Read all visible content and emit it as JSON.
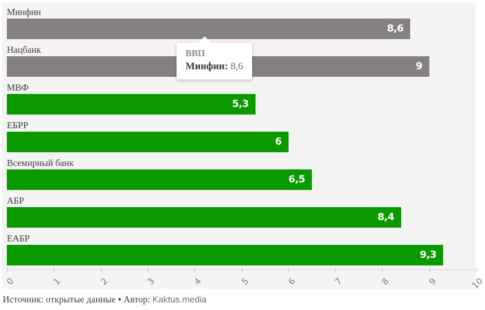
{
  "chart_data": {
    "type": "bar",
    "orientation": "horizontal",
    "title": "",
    "series_name": "ВВП",
    "categories": [
      "Минфин",
      "Нацбанк",
      "МВФ",
      "ЕБРР",
      "Всемирный банк",
      "АБР",
      "ЕАБР"
    ],
    "values": [
      8.6,
      9,
      5.3,
      6,
      6.5,
      8.4,
      9.3
    ],
    "value_labels": [
      "8,6",
      "9",
      "5,3",
      "6",
      "6,5",
      "8,4",
      "9,3"
    ],
    "bar_colors": [
      "#868081",
      "#868081",
      "#0a9a00",
      "#0a9a00",
      "#0a9a00",
      "#0a9a00",
      "#0a9a00"
    ],
    "xlim": [
      0,
      10
    ],
    "x_ticks": [
      "0",
      "1",
      "2",
      "3",
      "4",
      "5",
      "6",
      "7",
      "8",
      "9",
      "10"
    ],
    "grid": false,
    "plot_background": "#f4f4f4",
    "gray_color": "#868081",
    "green_color": "#0a9a00"
  },
  "tooltip": {
    "title": "ВВП",
    "label": "Минфин:",
    "value": "8,6"
  },
  "footer": {
    "source": "Источник: открытые данные",
    "separator": "•",
    "author_label": "Автор:",
    "author": "Kaktus.media"
  }
}
